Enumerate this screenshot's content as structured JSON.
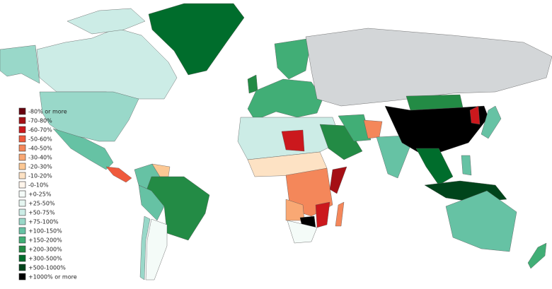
{
  "legend": {
    "items": [
      {
        "label": "-80% or more",
        "color": "#67000d"
      },
      {
        "label": "-70-80%",
        "color": "#a50f15"
      },
      {
        "label": "-60-70%",
        "color": "#cb181d"
      },
      {
        "label": "-50-60%",
        "color": "#ef5a3c"
      },
      {
        "label": "-40-50%",
        "color": "#f4875a"
      },
      {
        "label": "-30-40%",
        "color": "#f9a874"
      },
      {
        "label": "-20-30%",
        "color": "#fcc894"
      },
      {
        "label": "-10-20%",
        "color": "#fde2c4"
      },
      {
        "label": "-0-10%",
        "color": "#fff5eb"
      },
      {
        "label": "+0-25%",
        "color": "#f4fbf8"
      },
      {
        "label": "+25-50%",
        "color": "#e5f5f0"
      },
      {
        "label": "+50-75%",
        "color": "#ccece6"
      },
      {
        "label": "+75-100%",
        "color": "#99d8c9"
      },
      {
        "label": "+100-150%",
        "color": "#66c2a4"
      },
      {
        "label": "+150-200%",
        "color": "#41ae76"
      },
      {
        "label": "+200-300%",
        "color": "#238b45"
      },
      {
        "label": "+300-500%",
        "color": "#006d2c"
      },
      {
        "label": "+500-1000%",
        "color": "#00441b"
      },
      {
        "label": "+1000% or more",
        "color": "#000000"
      }
    ]
  }
}
